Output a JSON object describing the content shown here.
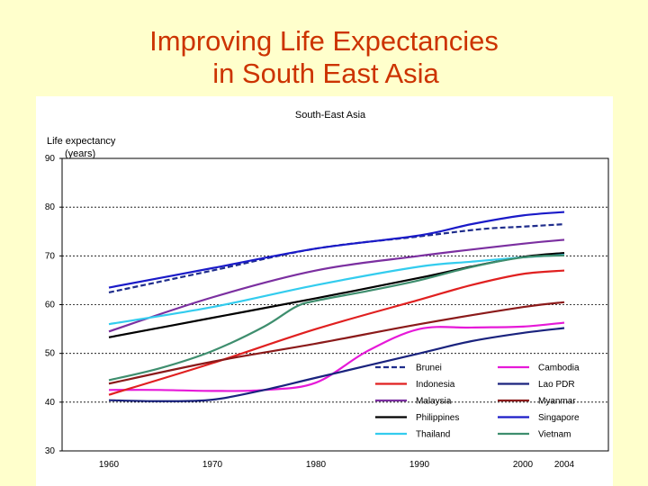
{
  "slide": {
    "title_line1": "Improving Life Expectancies",
    "title_line2": "in South East Asia",
    "background": "#FFFFCC",
    "title_color": "#CC3300"
  },
  "chart_data": {
    "type": "line",
    "title": "South-East Asia",
    "ylabel_line1": "Life expectancy",
    "ylabel_line2": "(years)",
    "xlabel": "",
    "x": [
      1960,
      1970,
      1980,
      1990,
      2000,
      2004
    ],
    "x_ticks": [
      "1960",
      "1970",
      "1980",
      "1990",
      "2000",
      "2004"
    ],
    "ylim": [
      30,
      90
    ],
    "y_ticks": [
      "30",
      "40",
      "50",
      "60",
      "70",
      "80",
      "90"
    ],
    "grid": "horizontal dashed",
    "legend_position": "bottom-right",
    "series": [
      {
        "name": "Brunei",
        "color": "#1F2D8C",
        "dash": true,
        "points": [
          [
            1960,
            62.5
          ],
          [
            1970,
            67
          ],
          [
            1980,
            71.5
          ],
          [
            1990,
            74
          ],
          [
            1996,
            75.5
          ],
          [
            2000,
            76
          ],
          [
            2004,
            76.5
          ]
        ]
      },
      {
        "name": "Cambodia",
        "color": "#E619D8",
        "dash": false,
        "points": [
          [
            1960,
            42.5
          ],
          [
            1965,
            42.5
          ],
          [
            1970,
            42.3
          ],
          [
            1975,
            42.5
          ],
          [
            1980,
            44
          ],
          [
            1985,
            50.5
          ],
          [
            1990,
            55
          ],
          [
            1995,
            55.3
          ],
          [
            2000,
            55.5
          ],
          [
            2004,
            56.3
          ]
        ]
      },
      {
        "name": "Indonesia",
        "color": "#E02020",
        "dash": false,
        "points": [
          [
            1960,
            41.5
          ],
          [
            1970,
            48
          ],
          [
            1980,
            55
          ],
          [
            1990,
            61
          ],
          [
            1995,
            64
          ],
          [
            2000,
            66.3
          ],
          [
            2004,
            67
          ]
        ]
      },
      {
        "name": "Lao PDR",
        "color": "#1A237E",
        "dash": false,
        "points": [
          [
            1960,
            40.4
          ],
          [
            1965,
            40.2
          ],
          [
            1970,
            40.5
          ],
          [
            1975,
            42.5
          ],
          [
            1980,
            45
          ],
          [
            1990,
            50
          ],
          [
            1995,
            52.5
          ],
          [
            2000,
            54.2
          ],
          [
            2004,
            55.2
          ]
        ]
      },
      {
        "name": "Malaysia",
        "color": "#7B2FA0",
        "dash": false,
        "points": [
          [
            1960,
            54.5
          ],
          [
            1970,
            61.5
          ],
          [
            1980,
            67
          ],
          [
            1990,
            70
          ],
          [
            2000,
            72.5
          ],
          [
            2004,
            73.3
          ]
        ]
      },
      {
        "name": "Myanmar",
        "color": "#8B1A1A",
        "dash": false,
        "points": [
          [
            1960,
            43.8
          ],
          [
            1970,
            48.3
          ],
          [
            1980,
            52
          ],
          [
            1990,
            56
          ],
          [
            2000,
            59.5
          ],
          [
            2004,
            60.5
          ]
        ]
      },
      {
        "name": "Philippines",
        "color": "#000000",
        "dash": false,
        "points": [
          [
            1960,
            53.3
          ],
          [
            1970,
            57.3
          ],
          [
            1980,
            61.3
          ],
          [
            1990,
            65.5
          ],
          [
            1995,
            67.8
          ],
          [
            2000,
            69.8
          ],
          [
            2004,
            70.6
          ]
        ]
      },
      {
        "name": "Singapore",
        "color": "#1A1AC8",
        "dash": false,
        "points": [
          [
            1960,
            63.5
          ],
          [
            1970,
            67.5
          ],
          [
            1980,
            71.5
          ],
          [
            1990,
            74.2
          ],
          [
            1995,
            76.5
          ],
          [
            2000,
            78.3
          ],
          [
            2004,
            79
          ]
        ]
      },
      {
        "name": "Thailand",
        "color": "#33CCEE",
        "dash": false,
        "points": [
          [
            1960,
            56
          ],
          [
            1970,
            59.5
          ],
          [
            1980,
            64
          ],
          [
            1990,
            67.8
          ],
          [
            1995,
            68.8
          ],
          [
            2000,
            69.7
          ],
          [
            2004,
            70.2
          ]
        ]
      },
      {
        "name": "Vietnam",
        "color": "#3E8E6E",
        "dash": false,
        "points": [
          [
            1960,
            44.5
          ],
          [
            1965,
            47
          ],
          [
            1970,
            50.5
          ],
          [
            1975,
            55.5
          ],
          [
            1978,
            59.5
          ],
          [
            1980,
            60.8
          ],
          [
            1985,
            62.8
          ],
          [
            1990,
            65
          ],
          [
            1995,
            67.7
          ],
          [
            2000,
            69.7
          ],
          [
            2004,
            70.1
          ]
        ]
      }
    ]
  }
}
